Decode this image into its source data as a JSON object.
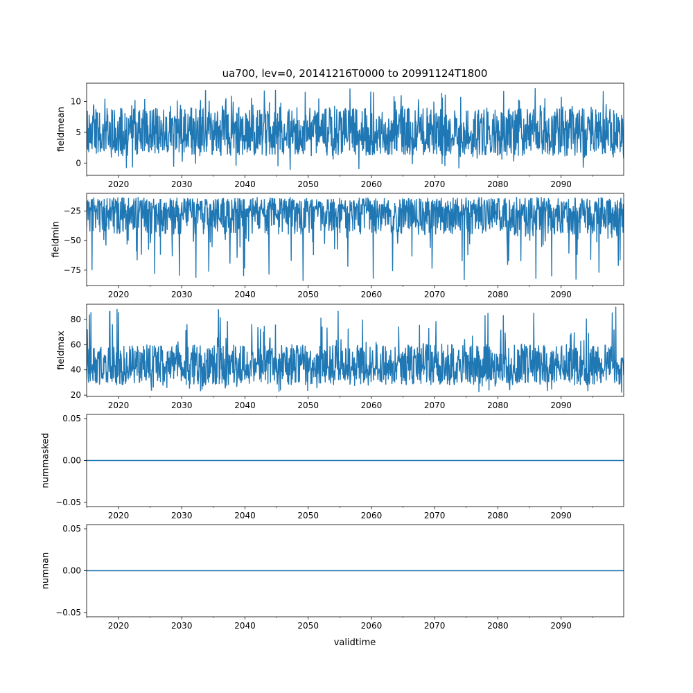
{
  "chart_data": [
    {
      "type": "line",
      "title": "ua700, lev=0, 20141216T0000 to 20991124T1800",
      "xlabel": "",
      "ylabel": "fieldmean",
      "xlim": [
        2014.96,
        2099.9
      ],
      "ylim": [
        -2.0,
        13.0
      ],
      "yticks": [
        0,
        5,
        10
      ],
      "ytick_labels": [
        "0",
        "5",
        "10"
      ],
      "xticks": [
        2020,
        2030,
        2040,
        2050,
        2060,
        2070,
        2080,
        2090
      ],
      "xtick_labels": [
        "2020",
        "2030",
        "2040",
        "2050",
        "2060",
        "2070",
        "2080",
        "2090"
      ],
      "series": [
        {
          "name": "fieldmean",
          "color": "#1f77b4",
          "center": 4.8,
          "envelope_low": 1.2,
          "envelope_high": 9.0,
          "min": -1.2,
          "max": 12.2
        }
      ]
    },
    {
      "type": "line",
      "title": "",
      "xlabel": "",
      "ylabel": "fieldmin",
      "xlim": [
        2014.96,
        2099.9
      ],
      "ylim": [
        -88,
        -10
      ],
      "yticks": [
        -75,
        -50,
        -25
      ],
      "ytick_labels": [
        "−75",
        "−50",
        "−25"
      ],
      "xticks": [
        2020,
        2030,
        2040,
        2050,
        2060,
        2070,
        2080,
        2090
      ],
      "xtick_labels": [
        "2020",
        "2030",
        "2040",
        "2050",
        "2060",
        "2070",
        "2080",
        "2090"
      ],
      "series": [
        {
          "name": "fieldmin",
          "color": "#1f77b4",
          "center": -25,
          "envelope_low": -45,
          "envelope_high": -14,
          "min": -84,
          "max": -13
        }
      ]
    },
    {
      "type": "line",
      "title": "",
      "xlabel": "",
      "ylabel": "fieldmax",
      "xlim": [
        2014.96,
        2099.9
      ],
      "ylim": [
        19,
        92
      ],
      "yticks": [
        20,
        40,
        60,
        80
      ],
      "ytick_labels": [
        "20",
        "40",
        "60",
        "80"
      ],
      "xticks": [
        2020,
        2030,
        2040,
        2050,
        2060,
        2070,
        2080,
        2090
      ],
      "xtick_labels": [
        "2020",
        "2030",
        "2040",
        "2050",
        "2060",
        "2070",
        "2080",
        "2090"
      ],
      "series": [
        {
          "name": "fieldmax",
          "color": "#1f77b4",
          "center": 42,
          "envelope_low": 28,
          "envelope_high": 60,
          "min": 22,
          "max": 90
        }
      ]
    },
    {
      "type": "line",
      "title": "",
      "xlabel": "",
      "ylabel": "nummasked",
      "xlim": [
        2014.96,
        2099.9
      ],
      "ylim": [
        -0.055,
        0.055
      ],
      "yticks": [
        -0.05,
        0.0,
        0.05
      ],
      "ytick_labels": [
        "−0.05",
        "0.00",
        "0.05"
      ],
      "xticks": [
        2020,
        2030,
        2040,
        2050,
        2060,
        2070,
        2080,
        2090
      ],
      "xtick_labels": [
        "2020",
        "2030",
        "2040",
        "2050",
        "2060",
        "2070",
        "2080",
        "2090"
      ],
      "series": [
        {
          "name": "nummasked",
          "color": "#1f77b4",
          "constant": 0.0
        }
      ]
    },
    {
      "type": "line",
      "title": "",
      "xlabel": "validtime",
      "ylabel": "numnan",
      "xlim": [
        2014.96,
        2099.9
      ],
      "ylim": [
        -0.055,
        0.055
      ],
      "yticks": [
        -0.05,
        0.0,
        0.05
      ],
      "ytick_labels": [
        "−0.05",
        "0.00",
        "0.05"
      ],
      "xticks": [
        2020,
        2030,
        2040,
        2050,
        2060,
        2070,
        2080,
        2090
      ],
      "xtick_labels": [
        "2020",
        "2030",
        "2040",
        "2050",
        "2060",
        "2070",
        "2080",
        "2090"
      ],
      "series": [
        {
          "name": "numnan",
          "color": "#1f77b4",
          "constant": 0.0
        }
      ]
    }
  ]
}
